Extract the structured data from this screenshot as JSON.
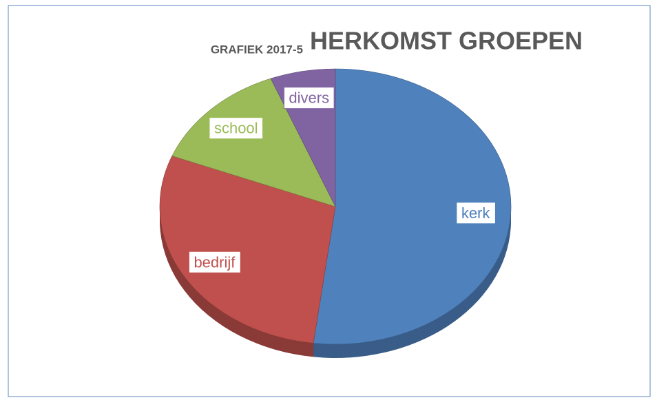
{
  "chart_data": {
    "type": "pie",
    "subtitle": "GRAFIEK 2017-5",
    "title": "HERKOMST GROEPEN",
    "categories": [
      "kerk",
      "bedrijf",
      "school",
      "divers"
    ],
    "values": [
      52,
      29,
      13,
      6
    ],
    "colors": [
      "#4f81bd",
      "#c0504d",
      "#9bbb59",
      "#8064a2"
    ]
  }
}
